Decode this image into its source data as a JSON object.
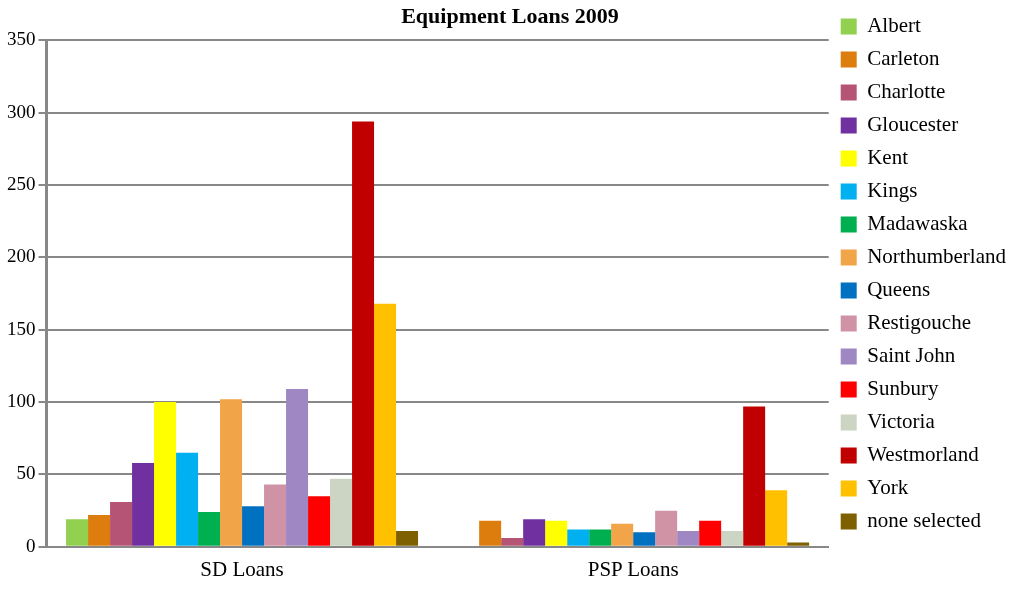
{
  "chart_data": {
    "type": "bar",
    "title": "Equipment Loans 2009",
    "categories": [
      "SD Loans",
      "PSP Loans"
    ],
    "series": [
      {
        "name": "Albert",
        "color": "#92d050",
        "values": [
          19,
          0
        ]
      },
      {
        "name": "Carleton",
        "color": "#dd7d0e",
        "values": [
          22,
          18
        ]
      },
      {
        "name": "Charlotte",
        "color": "#b65475",
        "values": [
          31,
          6
        ]
      },
      {
        "name": "Gloucester",
        "color": "#7030a0",
        "values": [
          58,
          19
        ]
      },
      {
        "name": "Kent",
        "color": "#ffff00",
        "values": [
          100,
          18
        ]
      },
      {
        "name": "Kings",
        "color": "#00b0f0",
        "values": [
          65,
          12
        ]
      },
      {
        "name": "Madawaska",
        "color": "#00b050",
        "values": [
          24,
          12
        ]
      },
      {
        "name": "Northumberland",
        "color": "#f2a449",
        "values": [
          102,
          16
        ]
      },
      {
        "name": "Queens",
        "color": "#0070c0",
        "values": [
          28,
          10
        ]
      },
      {
        "name": "Restigouche",
        "color": "#d093a6",
        "values": [
          43,
          25
        ]
      },
      {
        "name": "Saint John",
        "color": "#9e87c2",
        "values": [
          109,
          11
        ]
      },
      {
        "name": "Sunbury",
        "color": "#ff0000",
        "values": [
          35,
          18
        ]
      },
      {
        "name": "Victoria",
        "color": "#ccd5c3",
        "values": [
          47,
          11
        ]
      },
      {
        "name": "Westmorland",
        "color": "#c00000",
        "values": [
          294,
          97
        ]
      },
      {
        "name": "York",
        "color": "#ffc000",
        "values": [
          168,
          39
        ]
      },
      {
        "name": "none selected",
        "color": "#7f6000",
        "values": [
          11,
          3
        ]
      }
    ],
    "ylim": [
      0,
      350
    ],
    "yticks": [
      0,
      50,
      100,
      150,
      200,
      250,
      300,
      350
    ],
    "grid": "y",
    "legend": "right"
  }
}
